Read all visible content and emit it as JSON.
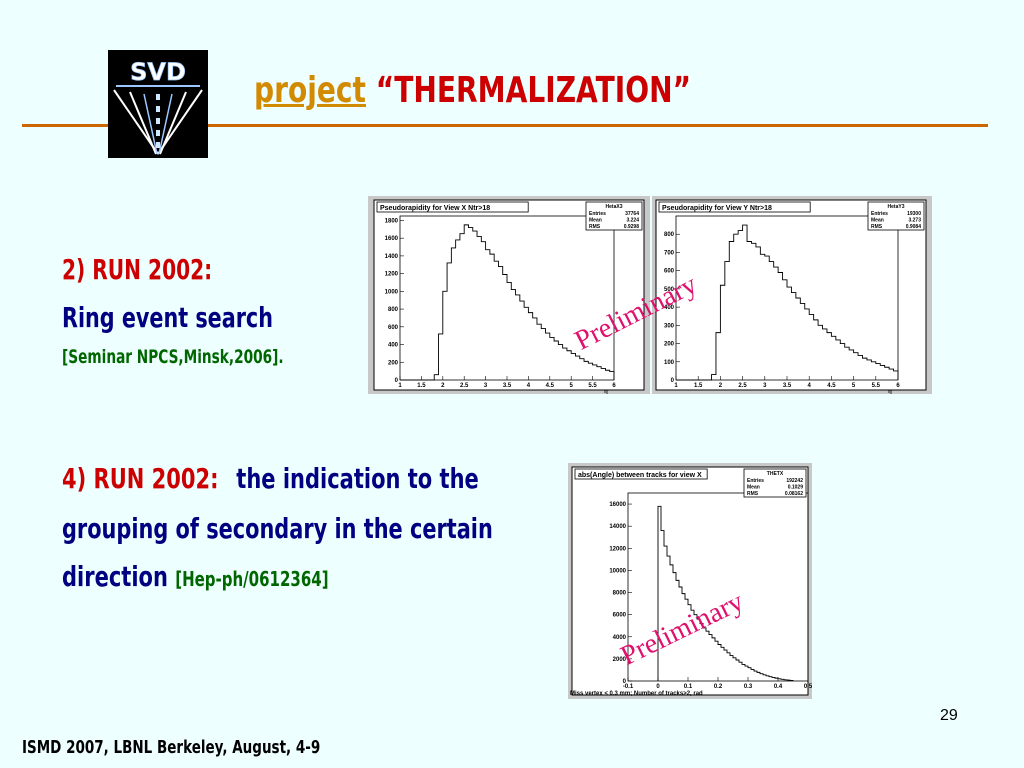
{
  "slide": {
    "title_project": "project",
    "title_name": "“THERMALIZATION”",
    "logo_text": "SVD",
    "page_number": "29",
    "footer": "ISMD 2007, LBNL Berkeley,  August, 4-9",
    "colors": {
      "background": "#eeffff",
      "rule": "#cc6600",
      "red": "#cc0000",
      "navy": "#000080",
      "green": "#006600",
      "watermark": "#e0106e"
    }
  },
  "item2": {
    "heading": "2) RUN 2002:",
    "line": "Ring event search",
    "ref": "[Seminar NPCS,Minsk,2006]."
  },
  "item4": {
    "heading": "4) RUN 2002:",
    "text1": "the indication to the",
    "text2": "grouping of secondary in the certain",
    "text3": "direction",
    "ref": "[Hep-ph/0612364]"
  },
  "chart_data": [
    {
      "type": "bar",
      "title": "Pseudorapidity for View X Ntr>18",
      "stats": {
        "name": "HetaX3",
        "entries": "37764",
        "mean": "3.224",
        "rms": "0.9298"
      },
      "xlabel": "η",
      "xlim": [
        1,
        6
      ],
      "ylim": [
        0,
        1850
      ],
      "xticks": [
        "1",
        "1.5",
        "2",
        "2.5",
        "3",
        "3.5",
        "4",
        "4.5",
        "5",
        "5.5",
        "6"
      ],
      "yticks": [
        "0",
        "200",
        "400",
        "600",
        "800",
        "1000",
        "1200",
        "1400",
        "1600",
        "1800"
      ],
      "bin_start": 1.0,
      "bin_width": 0.1,
      "values": [
        0,
        0,
        0,
        0,
        0,
        0,
        0,
        0,
        60,
        520,
        1000,
        1320,
        1490,
        1580,
        1650,
        1750,
        1720,
        1680,
        1620,
        1560,
        1470,
        1420,
        1340,
        1280,
        1190,
        1100,
        1020,
        960,
        890,
        820,
        760,
        700,
        630,
        580,
        530,
        480,
        440,
        400,
        360,
        330,
        300,
        270,
        240,
        210,
        190,
        170,
        150,
        130,
        110,
        95
      ]
    },
    {
      "type": "bar",
      "title": "Pseudorapidity for View Y Ntr>18",
      "stats": {
        "name": "HetaY3",
        "entries": "19300",
        "mean": "3.273",
        "rms": "0.9084"
      },
      "xlabel": "η",
      "xlim": [
        1,
        6
      ],
      "ylim": [
        0,
        900
      ],
      "xticks": [
        "1",
        "1.5",
        "2",
        "2.5",
        "3",
        "3.5",
        "4",
        "4.5",
        "5",
        "5.5",
        "6"
      ],
      "yticks": [
        "0",
        "100",
        "200",
        "300",
        "400",
        "500",
        "600",
        "700",
        "800"
      ],
      "bin_start": 1.0,
      "bin_width": 0.1,
      "values": [
        0,
        0,
        0,
        0,
        0,
        0,
        0,
        0,
        30,
        260,
        520,
        650,
        760,
        800,
        820,
        850,
        760,
        750,
        730,
        690,
        680,
        650,
        620,
        590,
        550,
        510,
        480,
        450,
        420,
        390,
        360,
        330,
        300,
        280,
        260,
        240,
        220,
        200,
        180,
        165,
        150,
        135,
        120,
        110,
        100,
        90,
        80,
        70,
        60,
        50
      ]
    },
    {
      "type": "bar",
      "title": "abs(Angle) between tracks for view X",
      "stats": {
        "name": "THETX",
        "entries": "192242",
        "mean": "0.1029",
        "rms": "0.08162"
      },
      "xlabel": "Miss vertex < 0.3 mm;  Number of tracks>2,      rad",
      "xlim": [
        -0.1,
        0.5
      ],
      "ylim": [
        0,
        17000
      ],
      "xticks": [
        "-0.1",
        "0",
        "0.1",
        "0.2",
        "0.3",
        "0.4",
        "0.5"
      ],
      "yticks": [
        "0",
        "2000",
        "4000",
        "6000",
        "8000",
        "10000",
        "12000",
        "14000",
        "16000"
      ],
      "bin_start": 0.0,
      "bin_width": 0.01,
      "values": [
        15800,
        13600,
        12200,
        11300,
        10500,
        9800,
        9100,
        8500,
        7900,
        7400,
        6900,
        6400,
        6000,
        5600,
        5200,
        4800,
        4500,
        4200,
        3900,
        3600,
        3300,
        3050,
        2800,
        2550,
        2300,
        2100,
        1900,
        1700,
        1500,
        1350,
        1200,
        1050,
        900,
        780,
        660,
        560,
        470,
        390,
        320,
        260,
        200,
        150,
        110,
        80,
        50
      ]
    }
  ]
}
